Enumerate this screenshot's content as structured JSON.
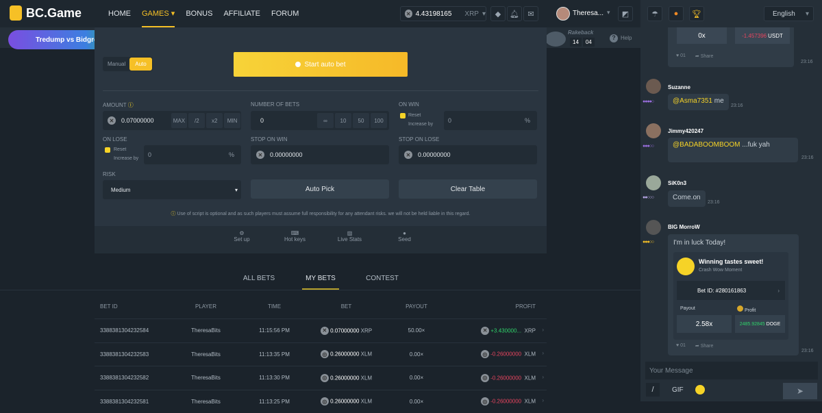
{
  "header": {
    "brand": "BC.Game",
    "nav": [
      "HOME",
      "GAMES",
      "BONUS",
      "AFFILIATE",
      "FORUM"
    ],
    "active_nav": "GAMES",
    "balance": "4.43198165",
    "currency": "XRP",
    "username": "Theresa...",
    "banner": "Tredump vs Bidgreen"
  },
  "rakeback": {
    "label": "Rakeback",
    "hours": "14",
    "minutes": "04",
    "help": "Help"
  },
  "game": {
    "mode_manual": "Manual",
    "mode_auto": "Auto",
    "start_button": "Start auto bet",
    "amount_label": "AMOUNT",
    "amount_value": "0.07000000",
    "amount_buttons": [
      "MAX",
      "/2",
      "x2",
      "MIN"
    ],
    "bets_label": "NUMBER OF BETS",
    "bets_value": "0",
    "bets_buttons": [
      "∞",
      "10",
      "50",
      "100"
    ],
    "on_win_label": "ON WIN",
    "on_lose_label": "ON LOSE",
    "reset": "Reset",
    "increase_by": "Increase by",
    "win_increase": "0",
    "lose_increase": "0",
    "percent": "%",
    "stop_win_label": "STOP ON WIN",
    "stop_win_value": "0.00000000",
    "stop_lose_label": "STOP ON LOSE",
    "stop_lose_value": "0.00000000",
    "risk_label": "RISK",
    "risk_value": "Medium",
    "auto_pick": "Auto Pick",
    "clear_table": "Clear Table",
    "disclaimer": "Use of script is optional and as such players must assume full responsibility for any attendant risks. we will not be held liable in this regard.",
    "tools": [
      "Set up",
      "Hot keys",
      "Live Stats",
      "Seed"
    ]
  },
  "bets": {
    "tabs": [
      "ALL BETS",
      "MY BETS",
      "CONTEST"
    ],
    "active_tab": "MY BETS",
    "columns": [
      "BET ID",
      "PLAYER",
      "TIME",
      "BET",
      "PAYOUT",
      "PROFIT"
    ],
    "rows": [
      {
        "id": "3388381304232584",
        "player": "TheresaBits",
        "time": "11:15:56 PM",
        "bet": "0.07000000",
        "bet_cur": "XRP",
        "payout": "50.00×",
        "profit": "+3.430000...",
        "profit_cur": "XRP",
        "win": true
      },
      {
        "id": "3388381304232583",
        "player": "TheresaBits",
        "time": "11:13:35 PM",
        "bet": "0.26000000",
        "bet_cur": "XLM",
        "payout": "0.00×",
        "profit": "-0.26000000",
        "profit_cur": "XLM",
        "win": false
      },
      {
        "id": "3388381304232582",
        "player": "TheresaBits",
        "time": "11:13:30 PM",
        "bet": "0.26000000",
        "bet_cur": "XLM",
        "payout": "0.00×",
        "profit": "-0.26000000",
        "profit_cur": "XLM",
        "win": false
      },
      {
        "id": "3388381304232581",
        "player": "TheresaBits",
        "time": "11:13:25 PM",
        "bet": "0.26000000",
        "bet_cur": "XLM",
        "payout": "0.00×",
        "profit": "-0.26000000",
        "profit_cur": "XLM",
        "win": false
      }
    ]
  },
  "chat": {
    "language": "English",
    "top_card": {
      "payout": "0x",
      "profit": "-1.457396",
      "profit_cur": "USDT",
      "likes": "01",
      "share": "Share",
      "time": "23:16"
    },
    "messages": [
      {
        "user": "Suzanne",
        "mention": "@Asma7351",
        "text": "me",
        "time": "23:16"
      },
      {
        "user": "Jimmy420247",
        "mention": "@BADABOOMBOOM",
        "text": "...fuk yah",
        "time": "23:16"
      },
      {
        "user": "SiK0n3",
        "text": "Come.on",
        "time": "23:16"
      },
      {
        "user": "BIG MorroW",
        "text": "I'm in luck Today!",
        "time": "23:16"
      }
    ],
    "win_card": {
      "title": "Winning tastes sweet!",
      "subtitle": "Crash Wow Moment",
      "bet_id": "Bet ID: #280161863",
      "payout_label": "Payout",
      "payout": "2.58x",
      "profit_label": "Profit",
      "profit": "2485.92845",
      "profit_cur": "DOGE",
      "likes": "01",
      "share": "Share"
    },
    "input_placeholder": "Your Message",
    "gif": "GIF"
  },
  "colors": {
    "accent": "#f6c026",
    "win": "#2fd36a",
    "loss": "#e8455f"
  }
}
